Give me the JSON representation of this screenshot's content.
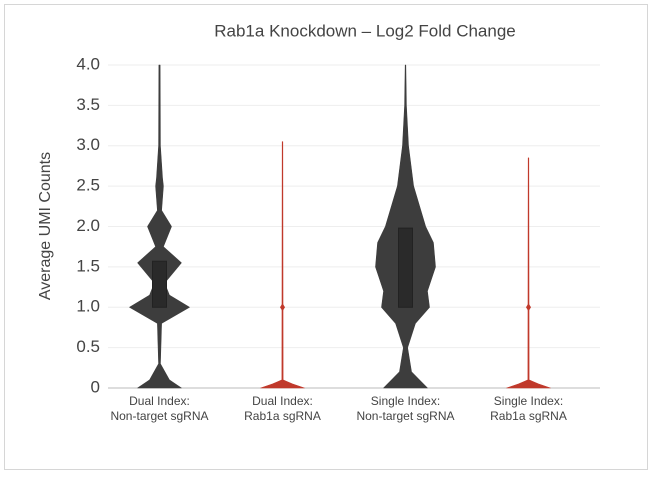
{
  "chart_data": {
    "type": "violin",
    "title": "Rab1a Knockdown – Log2 Fold Change",
    "y_label": "Average UMI Counts",
    "categories": [
      [
        "Dual Index:",
        "Non-target sgRNA"
      ],
      [
        "Dual Index:",
        "Rab1a sgRNA"
      ],
      [
        "Single Index:",
        "Non-target sgRNA"
      ],
      [
        "Single Index:",
        "Rab1a sgRNA"
      ]
    ],
    "ylim": [
      0,
      4
    ],
    "yticks": [
      0,
      0.5,
      {
        "value": 1,
        "label": "1.0"
      },
      1.5,
      {
        "value": 2,
        "label": "2.0"
      },
      2.5,
      {
        "value": 3,
        "label": "3.0"
      },
      3.5,
      {
        "value": 4,
        "label": "4.0"
      }
    ],
    "grid": true,
    "violins": [
      {
        "color": "#3d3d3d",
        "density_y": [
          0,
          0.1,
          0.3,
          0.8,
          1.0,
          1.15,
          1.3,
          1.55,
          1.75,
          2.0,
          2.2,
          2.5,
          2.6,
          3.0,
          4.0
        ],
        "density": [
          0.73,
          0.33,
          0.03,
          0.07,
          1.0,
          0.33,
          0.17,
          0.73,
          0.13,
          0.4,
          0.07,
          0.13,
          0.1,
          0.03,
          0.02
        ],
        "q1": 1.0,
        "q3": 1.57,
        "max": 3.97
      },
      {
        "color": "#c0392b",
        "density_y": [
          0,
          0.05,
          0.1,
          3.05
        ],
        "density": [
          0.73,
          0.33,
          0.02,
          0.01
        ],
        "max": 3.05,
        "mean": 1.0
      },
      {
        "color": "#3d3d3d",
        "density_y": [
          0,
          0.2,
          0.5,
          0.8,
          1.0,
          1.2,
          1.5,
          1.8,
          2.0,
          2.5,
          3.0,
          3.5,
          4.0
        ],
        "density": [
          0.73,
          0.2,
          0.07,
          0.33,
          0.8,
          0.73,
          1.0,
          0.93,
          0.67,
          0.27,
          0.1,
          0.03,
          0.01
        ],
        "q1": 1.0,
        "q3": 1.98,
        "max": 3.98
      },
      {
        "color": "#c0392b",
        "density_y": [
          0,
          0.05,
          0.1,
          2.85
        ],
        "density": [
          0.73,
          0.33,
          0.02,
          0.01
        ],
        "max": 2.85,
        "mean": 1.0
      }
    ]
  }
}
